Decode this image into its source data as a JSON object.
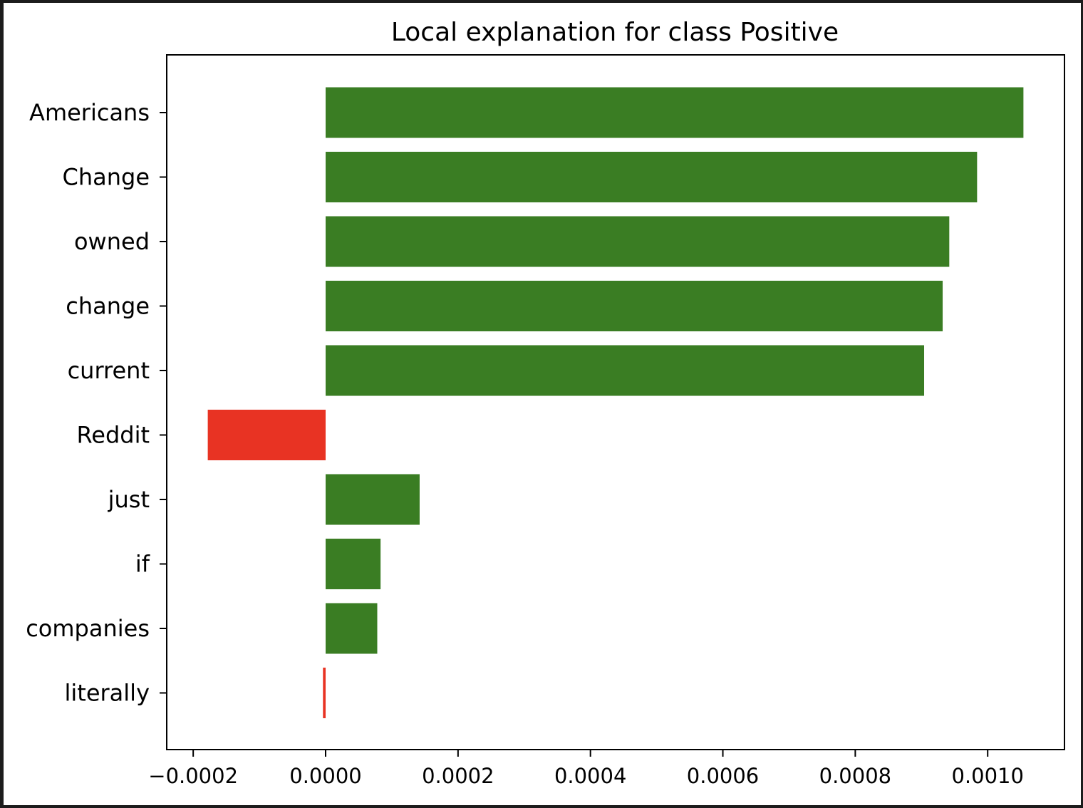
{
  "chart_data": {
    "type": "bar",
    "orientation": "horizontal",
    "title": "Local explanation for class Positive",
    "xlabel": "",
    "ylabel": "",
    "categories": [
      "Americans",
      "Change",
      "owned",
      "change",
      "current",
      "Reddit",
      "just",
      "if",
      "companies",
      "literally"
    ],
    "values": [
      0.001054,
      0.000984,
      0.000942,
      0.000932,
      0.000904,
      -0.000178,
      0.000142,
      8.3e-05,
      7.8e-05,
      -4e-06
    ],
    "xlim": [
      -0.00024,
      0.001116
    ],
    "xticks": [
      -0.0002,
      0.0,
      0.0002,
      0.0004,
      0.0006,
      0.0008,
      0.001
    ],
    "xtick_labels": [
      "−0.0002",
      "0.0000",
      "0.0002",
      "0.0004",
      "0.0006",
      "0.0008",
      "0.0010"
    ],
    "grid": false,
    "legend": "none",
    "colors": {
      "positive": "#3a7d23",
      "negative": "#e83323",
      "axes": "#000000"
    }
  }
}
